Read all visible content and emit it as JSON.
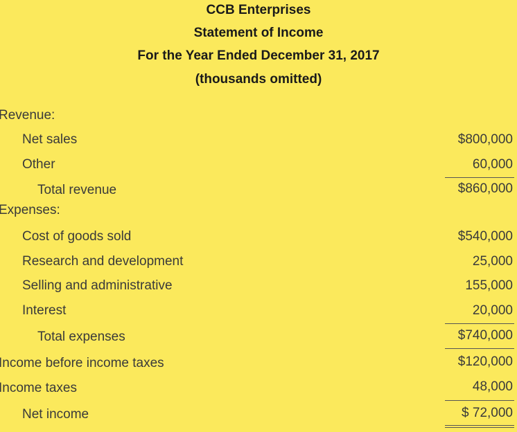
{
  "header": {
    "company": "CCB Enterprises",
    "statement": "Statement of Income",
    "period": "For the Year Ended December 31, 2017",
    "note": "(thousands omitted)"
  },
  "revenue": {
    "heading": "Revenue:",
    "net_sales_label": "Net sales",
    "net_sales_amount": "$800,000",
    "other_label": "Other",
    "other_amount": "60,000",
    "total_label": "Total revenue",
    "total_amount": "$860,000"
  },
  "expenses": {
    "heading": "Expenses:",
    "cogs_label": "Cost of goods sold",
    "cogs_amount": "$540,000",
    "rnd_label": "Research and development",
    "rnd_amount": "25,000",
    "sga_label": "Selling and administrative",
    "sga_amount": "155,000",
    "interest_label": "Interest",
    "interest_amount": "20,000",
    "total_label": "Total expenses",
    "total_amount": "$740,000"
  },
  "pretax": {
    "label": "Income before income taxes",
    "amount": "$120,000"
  },
  "taxes": {
    "label": "Income taxes",
    "amount": "48,000"
  },
  "net_income": {
    "label": "Net income",
    "amount": "$ 72,000"
  }
}
